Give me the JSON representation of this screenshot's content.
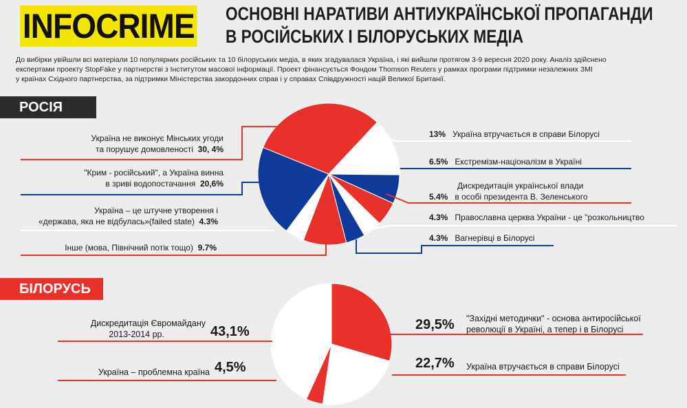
{
  "header": {
    "logo": "INFOCRIME",
    "title_line1": "ОСНОВНІ НАРАТИВИ АНТИУКРАЇНСЬКОЇ ПРОПАГАНДИ",
    "title_line2": "В РОСІЙСЬКИХ І БІЛОРУСЬКИХ МЕДІА",
    "intro_line1": "До вибірки увійшли всі матеріали 10 популярних російських та 10 білоруських медіа, в яких згадувалася Україна, і які вийшли протягом 3-9 вересня 2020 року. Аналіз здійснено",
    "intro_line2": "експертами проекту StopFake у партнерстві з Інститутом масової інформації. Проект фінансується Фондом Thomson Reuters у рамках програми підтримки незалежних ЗМІ",
    "intro_line3": "у країнах Східного партнерства, за підтримки Міністерства закордонних справ і у справах Співдружності націй Великої Британії."
  },
  "colors": {
    "red": "#e8312a",
    "blue": "#0e3a9a",
    "white": "#ffffff",
    "dark": "#2b2b2b"
  },
  "chart_data": [
    {
      "type": "pie",
      "title": "РОСІЯ",
      "slices": [
        {
          "label": "Україна не виконує Мінських угоди та порушує домовленості",
          "label_line1": "Україна не виконує Мінських угоди",
          "label_line2": "та порушує домовленості",
          "value": 30.4,
          "value_text": "30, 4%",
          "color": "red"
        },
        {
          "label": "Україна втручається в справи Білорусі",
          "value": 13,
          "value_text": "13%",
          "color": "white"
        },
        {
          "label": "Екстремізм-націоналізм в Україні",
          "value": 6.5,
          "value_text": "6.5%",
          "color": "blue"
        },
        {
          "label": "Дискредитація української влади в особі президента В. Зеленського",
          "label_line1": "Дискредитація української влади",
          "label_line2": "в особі президента В. Зеленського",
          "value": 5.4,
          "value_text": "5.4%",
          "color": "red"
        },
        {
          "label": "Православна церква України - це \"розкольництво",
          "value": 4.3,
          "value_text": "4.3%",
          "color": "white"
        },
        {
          "label": "Вагнерівці в Білорусі",
          "value": 4.3,
          "value_text": "4.3%",
          "color": "blue"
        },
        {
          "label": "Інше (мова, Північний потік тощо)",
          "value": 9.7,
          "value_text": "9.7%",
          "color": "red"
        },
        {
          "label": "Україна – це штучне утворення і «держава, яка не відбулась»(failed state)",
          "label_line1": "Україна – це штучне утворення і",
          "label_line2": "«держава, яка не відбулась»(failed state)",
          "value": 4.3,
          "value_text": "4.3%",
          "color": "white"
        },
        {
          "label": "\"Крим - російський\", а Україна винна в зриві водопостачання",
          "label_line1": "\"Крим - російський\", а Україна винна",
          "label_line2": "в зриві водопостачання",
          "value": 20.6,
          "value_text": "20,6%",
          "color": "blue"
        }
      ]
    },
    {
      "type": "pie",
      "title": "БІЛОРУСЬ",
      "slices": [
        {
          "label": "\"Західні методички\" - основа антиросійської революції в Україні, а тепер і в Білорусі",
          "label_line1": "\"Західні методички\" - основа антиросійської",
          "label_line2": "революції в Україні, а тепер і в Білорусі",
          "value": 29.5,
          "value_text": "29,5%",
          "color": "red"
        },
        {
          "label": "Україна втручається в справи Білорусі",
          "value": 22.7,
          "value_text": "22,7%",
          "color": "white"
        },
        {
          "label": "Україна – проблемна країна",
          "value": 4.5,
          "value_text": "4,5%",
          "color": "red"
        },
        {
          "label": "Дискредитація Євромайдану 2013-2014 рр.",
          "label_line1": "Дискредитація Євромайдану",
          "label_line2": "2013-2014 рр.",
          "value": 43.1,
          "value_text": "43,1%",
          "color": "white"
        }
      ]
    }
  ]
}
